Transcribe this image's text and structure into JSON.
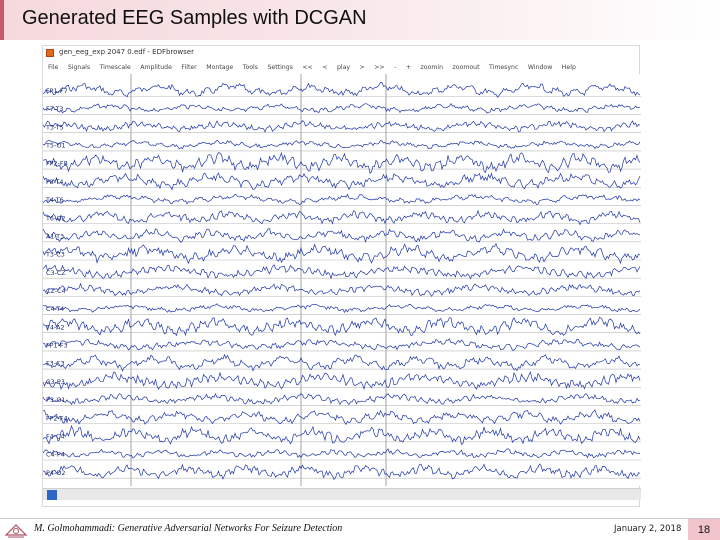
{
  "slide": {
    "title": "Generated EEG Samples with DCGAN"
  },
  "window": {
    "title": "gen_eeg_exp 2047 0.edf - EDFbrowser",
    "menu": [
      "File",
      "Signals",
      "Timescale",
      "Amplitude",
      "Filter",
      "Montage",
      "Tools",
      "Settings",
      "<<",
      "<",
      "play",
      ">",
      ">>",
      "-",
      "+",
      "zoomin",
      "zoomout",
      "Timesync",
      "Window",
      "Help"
    ],
    "channels": [
      "FP1-F7",
      "F7-T3",
      "T3-T5",
      "T5-O1",
      "FP2-F8",
      "F8-T4",
      "T4-T6",
      "T6-O2",
      "A1-T3",
      "T3-C3",
      "C3-CZ",
      "CZ-C4",
      "C4-T4",
      "T4-A2",
      "FP1-F3",
      "F3-C3",
      "C3-P3",
      "P3-O1",
      "FP2-F4",
      "F4-C4",
      "C4-P4",
      "P4-O2"
    ]
  },
  "footer": {
    "author": "M. Golmohammadi: Generative Adversarial Networks For Seizure Detection",
    "date": "January 2, 2018",
    "page": "18"
  },
  "colors": {
    "trace": "#1f36a8",
    "gridline": "#8a8a8a",
    "baseline": "#b8b8b8",
    "accent": "#c45a6a",
    "page_badge": "#f2c4cc"
  },
  "icons": {
    "app": "edfbrowser-icon",
    "logo": "university-logo-icon"
  }
}
